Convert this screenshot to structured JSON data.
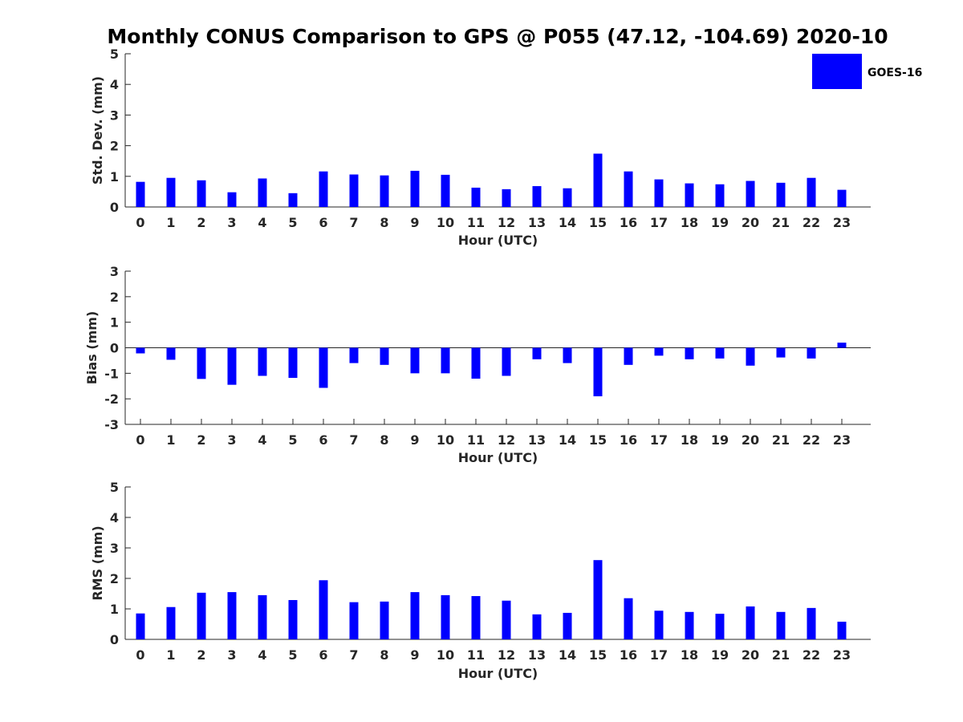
{
  "figure_title": "Monthly CONUS Comparison to GPS @ P055 (47.12, -104.69) 2020-10",
  "bar_color": "#0000ff",
  "legend": {
    "label": "GOES-16",
    "placement": "top-right"
  },
  "chart_data": [
    {
      "type": "bar",
      "xlabel": "Hour (UTC)",
      "ylabel": "Std. Dev. (mm)",
      "ylim": [
        0,
        5
      ],
      "yticks": [
        0,
        1,
        2,
        3,
        4,
        5
      ],
      "categories": [
        "0",
        "1",
        "2",
        "3",
        "4",
        "5",
        "6",
        "7",
        "8",
        "9",
        "10",
        "11",
        "12",
        "13",
        "14",
        "15",
        "16",
        "17",
        "18",
        "19",
        "20",
        "21",
        "22",
        "23"
      ],
      "series": [
        {
          "name": "GOES-16",
          "values": [
            0.82,
            0.95,
            0.87,
            0.48,
            0.93,
            0.45,
            1.16,
            1.06,
            1.03,
            1.18,
            1.05,
            0.63,
            0.58,
            0.68,
            0.61,
            1.74,
            1.16,
            0.9,
            0.77,
            0.74,
            0.85,
            0.79,
            0.95,
            0.56
          ]
        }
      ]
    },
    {
      "type": "bar",
      "xlabel": "Hour (UTC)",
      "ylabel": "Bias (mm)",
      "ylim": [
        -3,
        3
      ],
      "yticks": [
        -3,
        -2,
        -1,
        0,
        1,
        2,
        3
      ],
      "categories": [
        "0",
        "1",
        "2",
        "3",
        "4",
        "5",
        "6",
        "7",
        "8",
        "9",
        "10",
        "11",
        "12",
        "13",
        "14",
        "15",
        "16",
        "17",
        "18",
        "19",
        "20",
        "21",
        "22",
        "23"
      ],
      "series": [
        {
          "name": "GOES-16",
          "values": [
            -0.22,
            -0.47,
            -1.22,
            -1.45,
            -1.1,
            -1.18,
            -1.57,
            -0.6,
            -0.67,
            -1.0,
            -1.0,
            -1.21,
            -1.1,
            -0.45,
            -0.6,
            -1.9,
            -0.67,
            -0.31,
            -0.45,
            -0.42,
            -0.7,
            -0.38,
            -0.42,
            0.2
          ]
        }
      ]
    },
    {
      "type": "bar",
      "xlabel": "Hour (UTC)",
      "ylabel": "RMS (mm)",
      "ylim": [
        0,
        5
      ],
      "yticks": [
        0,
        1,
        2,
        3,
        4,
        5
      ],
      "categories": [
        "0",
        "1",
        "2",
        "3",
        "4",
        "5",
        "6",
        "7",
        "8",
        "9",
        "10",
        "11",
        "12",
        "13",
        "14",
        "15",
        "16",
        "17",
        "18",
        "19",
        "20",
        "21",
        "22",
        "23"
      ],
      "series": [
        {
          "name": "GOES-16",
          "values": [
            0.85,
            1.06,
            1.53,
            1.55,
            1.45,
            1.29,
            1.94,
            1.22,
            1.24,
            1.55,
            1.45,
            1.42,
            1.27,
            0.82,
            0.87,
            2.6,
            1.35,
            0.94,
            0.9,
            0.84,
            1.08,
            0.9,
            1.03,
            0.58
          ]
        }
      ]
    }
  ]
}
